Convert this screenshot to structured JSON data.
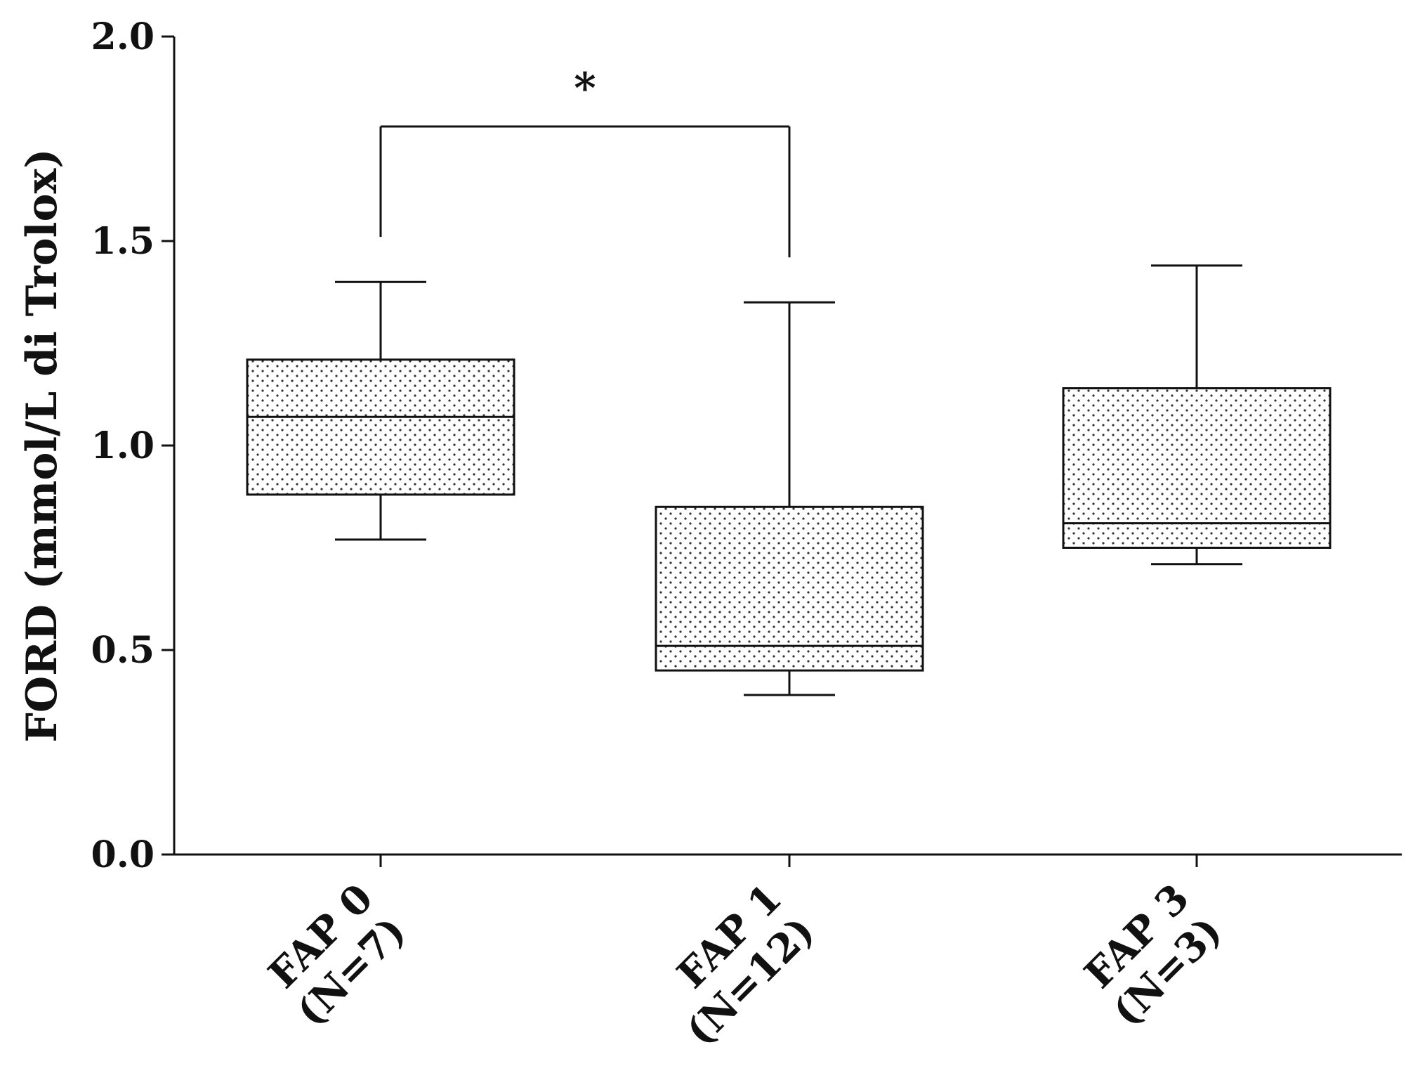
{
  "chart_data": {
    "type": "box",
    "title": "",
    "xlabel": "",
    "ylabel": "FORD (mmol/L di Trolox)",
    "ylim": [
      0,
      2
    ],
    "yticks": [
      "0.0",
      "0.5",
      "1.0",
      "1.5",
      "2.0"
    ],
    "grid": false,
    "legend": "none",
    "fill_pattern": "dotted",
    "groups": [
      {
        "name_lines": [
          "FAP 0",
          "(N=7)"
        ],
        "min": 0.77,
        "q1": 0.88,
        "median": 1.07,
        "q3": 1.21,
        "max": 1.4
      },
      {
        "name_lines": [
          "FAP 1",
          "(N=12)"
        ],
        "min": 0.39,
        "q1": 0.45,
        "median": 0.51,
        "q3": 0.85,
        "max": 1.35
      },
      {
        "name_lines": [
          "FAP 3",
          "(N=3)"
        ],
        "min": 0.71,
        "q1": 0.75,
        "median": 0.81,
        "q3": 1.14,
        "max": 1.44
      }
    ],
    "annotations": [
      {
        "text": "*",
        "from_group": 0,
        "to_group": 1,
        "bracket_y": 1.78,
        "left_tick_bottom": 1.51,
        "right_tick_bottom": 1.46
      }
    ]
  }
}
